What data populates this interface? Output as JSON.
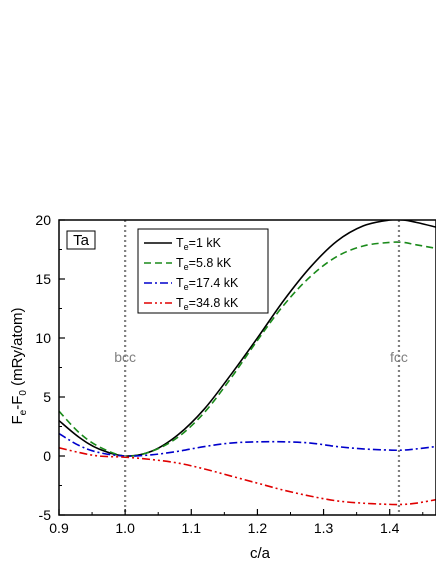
{
  "chart_data": {
    "type": "line",
    "xlabel": "c/a",
    "ylabel": {
      "main": "F",
      "sub1": "e",
      "mid": "-F",
      "sub2": "0",
      "rest": " (mRy/atom)"
    },
    "xlim": [
      0.9,
      1.47
    ],
    "ylim": [
      -5,
      20
    ],
    "xticks": [
      0.9,
      1.0,
      1.1,
      1.2,
      1.3,
      1.4
    ],
    "yticks": [
      -5,
      0,
      5,
      10,
      15,
      20
    ],
    "grid": false,
    "legend_position": "top-left",
    "panel_label": "Ta",
    "annotations": [
      {
        "text": "bcc",
        "x": 1.0
      },
      {
        "text": "fcc",
        "x": 1.414
      }
    ],
    "series": [
      {
        "name": {
          "pre": "T",
          "sub": "e",
          "post": "=1 kK"
        },
        "color": "#000000",
        "dash": "",
        "x": [
          0.9,
          0.93,
          0.96,
          1.0,
          1.04,
          1.08,
          1.12,
          1.16,
          1.2,
          1.24,
          1.28,
          1.32,
          1.36,
          1.4,
          1.42,
          1.44,
          1.47
        ],
        "y": [
          3.0,
          1.6,
          0.6,
          0.0,
          0.4,
          1.8,
          4.0,
          6.9,
          10.0,
          13.2,
          16.0,
          18.2,
          19.5,
          20.0,
          20.0,
          19.8,
          19.4
        ]
      },
      {
        "name": {
          "pre": "T",
          "sub": "e",
          "post": "=5.8 kK"
        },
        "color": "#1a8a1a",
        "dash": "7,4",
        "x": [
          0.9,
          0.93,
          0.96,
          1.0,
          1.04,
          1.08,
          1.12,
          1.16,
          1.2,
          1.24,
          1.28,
          1.32,
          1.36,
          1.4,
          1.42,
          1.44,
          1.47
        ],
        "y": [
          3.8,
          2.0,
          0.8,
          0.0,
          0.4,
          1.6,
          3.7,
          6.6,
          9.8,
          12.8,
          15.2,
          16.9,
          17.8,
          18.1,
          18.1,
          17.9,
          17.6
        ]
      },
      {
        "name": {
          "pre": "T",
          "sub": "e",
          "post": "=17.4 kK"
        },
        "color": "#0000cc",
        "dash": "8,3,2,3",
        "x": [
          0.9,
          0.93,
          0.96,
          1.0,
          1.04,
          1.08,
          1.12,
          1.16,
          1.2,
          1.24,
          1.28,
          1.32,
          1.36,
          1.4,
          1.42,
          1.44,
          1.47
        ],
        "y": [
          1.9,
          0.9,
          0.3,
          0.0,
          0.1,
          0.4,
          0.8,
          1.1,
          1.2,
          1.2,
          1.1,
          0.8,
          0.6,
          0.5,
          0.5,
          0.6,
          0.8
        ]
      },
      {
        "name": {
          "pre": "T",
          "sub": "e",
          "post": "=34.8 kK"
        },
        "color": "#e00000",
        "dash": "8,3,2,3,2,3",
        "x": [
          0.9,
          0.93,
          0.96,
          1.0,
          1.04,
          1.08,
          1.12,
          1.16,
          1.2,
          1.24,
          1.28,
          1.32,
          1.36,
          1.4,
          1.42,
          1.44,
          1.47
        ],
        "y": [
          0.7,
          0.3,
          0.0,
          -0.1,
          -0.3,
          -0.6,
          -1.1,
          -1.7,
          -2.3,
          -2.9,
          -3.4,
          -3.8,
          -4.0,
          -4.1,
          -4.1,
          -4.0,
          -3.7
        ]
      }
    ]
  }
}
